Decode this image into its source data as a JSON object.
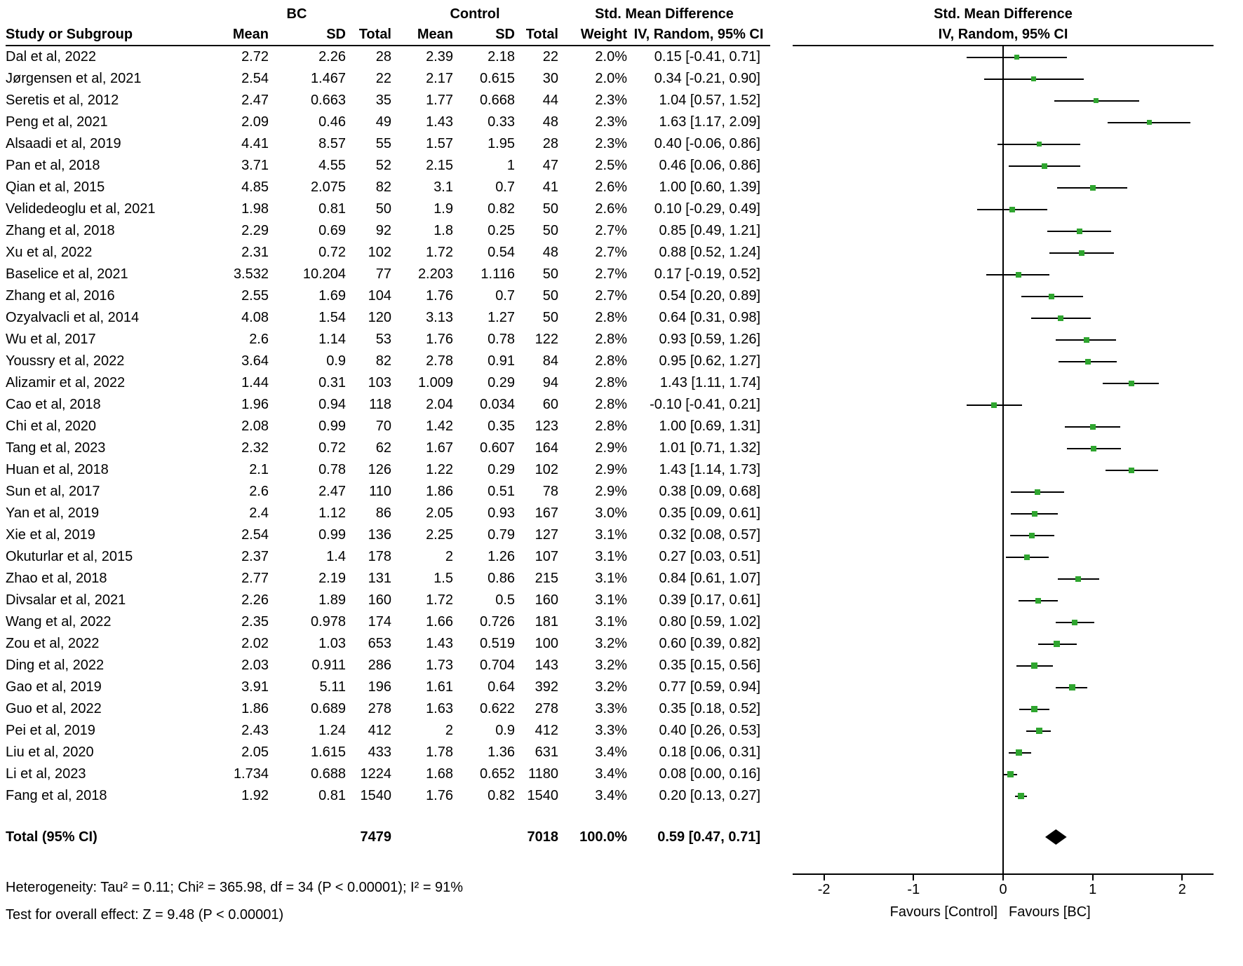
{
  "chart_data": {
    "type": "forest",
    "style": {
      "marker_color": "#2fa52f",
      "line_color": "#000000",
      "diamond_color": "#000000"
    },
    "group_headers": {
      "bc": "BC",
      "control": "Control",
      "smd": "Std. Mean Difference"
    },
    "col_headers": [
      "Study or Subgroup",
      "Mean",
      "SD",
      "Total",
      "Mean",
      "SD",
      "Total",
      "Weight",
      "IV, Random, 95% CI"
    ],
    "plot_header": {
      "title": "Std. Mean Difference",
      "subtitle": "IV, Random, 95% CI"
    },
    "axis": {
      "xmin": -2.35,
      "xmax": 2.35,
      "ticks": [
        -2,
        -1,
        0,
        1,
        2
      ],
      "favours_left": "Favours [Control]",
      "favours_right": "Favours [BC]"
    },
    "studies": [
      {
        "study": "Dal et al, 2022",
        "bc_mean": "2.72",
        "bc_sd": "2.26",
        "bc_total": "28",
        "c_mean": "2.39",
        "c_sd": "2.18",
        "c_total": "22",
        "weight": "2.0%",
        "ci": "0.15 [-0.41, 0.71]",
        "est": 0.15,
        "lo": -0.41,
        "hi": 0.71
      },
      {
        "study": "Jørgensen et al, 2021",
        "bc_mean": "2.54",
        "bc_sd": "1.467",
        "bc_total": "22",
        "c_mean": "2.17",
        "c_sd": "0.615",
        "c_total": "30",
        "weight": "2.0%",
        "ci": "0.34 [-0.21, 0.90]",
        "est": 0.34,
        "lo": -0.21,
        "hi": 0.9
      },
      {
        "study": "Seretis et al, 2012",
        "bc_mean": "2.47",
        "bc_sd": "0.663",
        "bc_total": "35",
        "c_mean": "1.77",
        "c_sd": "0.668",
        "c_total": "44",
        "weight": "2.3%",
        "ci": "1.04 [0.57, 1.52]",
        "est": 1.04,
        "lo": 0.57,
        "hi": 1.52
      },
      {
        "study": "Peng et al, 2021",
        "bc_mean": "2.09",
        "bc_sd": "0.46",
        "bc_total": "49",
        "c_mean": "1.43",
        "c_sd": "0.33",
        "c_total": "48",
        "weight": "2.3%",
        "ci": "1.63 [1.17, 2.09]",
        "est": 1.63,
        "lo": 1.17,
        "hi": 2.09
      },
      {
        "study": "Alsaadi et al, 2019",
        "bc_mean": "4.41",
        "bc_sd": "8.57",
        "bc_total": "55",
        "c_mean": "1.57",
        "c_sd": "1.95",
        "c_total": "28",
        "weight": "2.3%",
        "ci": "0.40 [-0.06, 0.86]",
        "est": 0.4,
        "lo": -0.06,
        "hi": 0.86
      },
      {
        "study": "Pan et al, 2018",
        "bc_mean": "3.71",
        "bc_sd": "4.55",
        "bc_total": "52",
        "c_mean": "2.15",
        "c_sd": "1",
        "c_total": "47",
        "weight": "2.5%",
        "ci": "0.46 [0.06, 0.86]",
        "est": 0.46,
        "lo": 0.06,
        "hi": 0.86
      },
      {
        "study": "Qian et al, 2015",
        "bc_mean": "4.85",
        "bc_sd": "2.075",
        "bc_total": "82",
        "c_mean": "3.1",
        "c_sd": "0.7",
        "c_total": "41",
        "weight": "2.6%",
        "ci": "1.00 [0.60, 1.39]",
        "est": 1.0,
        "lo": 0.6,
        "hi": 1.39
      },
      {
        "study": "Velidedeoglu et al, 2021",
        "bc_mean": "1.98",
        "bc_sd": "0.81",
        "bc_total": "50",
        "c_mean": "1.9",
        "c_sd": "0.82",
        "c_total": "50",
        "weight": "2.6%",
        "ci": "0.10 [-0.29, 0.49]",
        "est": 0.1,
        "lo": -0.29,
        "hi": 0.49
      },
      {
        "study": "Zhang et al, 2018",
        "bc_mean": "2.29",
        "bc_sd": "0.69",
        "bc_total": "92",
        "c_mean": "1.8",
        "c_sd": "0.25",
        "c_total": "50",
        "weight": "2.7%",
        "ci": "0.85 [0.49, 1.21]",
        "est": 0.85,
        "lo": 0.49,
        "hi": 1.21
      },
      {
        "study": "Xu et al, 2022",
        "bc_mean": "2.31",
        "bc_sd": "0.72",
        "bc_total": "102",
        "c_mean": "1.72",
        "c_sd": "0.54",
        "c_total": "48",
        "weight": "2.7%",
        "ci": "0.88 [0.52, 1.24]",
        "est": 0.88,
        "lo": 0.52,
        "hi": 1.24
      },
      {
        "study": "Baselice et al, 2021",
        "bc_mean": "3.532",
        "bc_sd": "10.204",
        "bc_total": "77",
        "c_mean": "2.203",
        "c_sd": "1.116",
        "c_total": "50",
        "weight": "2.7%",
        "ci": "0.17 [-0.19, 0.52]",
        "est": 0.17,
        "lo": -0.19,
        "hi": 0.52
      },
      {
        "study": "Zhang et al, 2016",
        "bc_mean": "2.55",
        "bc_sd": "1.69",
        "bc_total": "104",
        "c_mean": "1.76",
        "c_sd": "0.7",
        "c_total": "50",
        "weight": "2.7%",
        "ci": "0.54 [0.20, 0.89]",
        "est": 0.54,
        "lo": 0.2,
        "hi": 0.89
      },
      {
        "study": "Ozyalvacli et al, 2014",
        "bc_mean": "4.08",
        "bc_sd": "1.54",
        "bc_total": "120",
        "c_mean": "3.13",
        "c_sd": "1.27",
        "c_total": "50",
        "weight": "2.8%",
        "ci": "0.64 [0.31, 0.98]",
        "est": 0.64,
        "lo": 0.31,
        "hi": 0.98
      },
      {
        "study": "Wu et al, 2017",
        "bc_mean": "2.6",
        "bc_sd": "1.14",
        "bc_total": "53",
        "c_mean": "1.76",
        "c_sd": "0.78",
        "c_total": "122",
        "weight": "2.8%",
        "ci": "0.93 [0.59, 1.26]",
        "est": 0.93,
        "lo": 0.59,
        "hi": 1.26
      },
      {
        "study": "Youssry et al, 2022",
        "bc_mean": "3.64",
        "bc_sd": "0.9",
        "bc_total": "82",
        "c_mean": "2.78",
        "c_sd": "0.91",
        "c_total": "84",
        "weight": "2.8%",
        "ci": "0.95 [0.62, 1.27]",
        "est": 0.95,
        "lo": 0.62,
        "hi": 1.27
      },
      {
        "study": "Alizamir et al, 2022",
        "bc_mean": "1.44",
        "bc_sd": "0.31",
        "bc_total": "103",
        "c_mean": "1.009",
        "c_sd": "0.29",
        "c_total": "94",
        "weight": "2.8%",
        "ci": "1.43 [1.11, 1.74]",
        "est": 1.43,
        "lo": 1.11,
        "hi": 1.74
      },
      {
        "study": "Cao et al, 2018",
        "bc_mean": "1.96",
        "bc_sd": "0.94",
        "bc_total": "118",
        "c_mean": "2.04",
        "c_sd": "0.034",
        "c_total": "60",
        "weight": "2.8%",
        "ci": "-0.10 [-0.41, 0.21]",
        "est": -0.1,
        "lo": -0.41,
        "hi": 0.21
      },
      {
        "study": "Chi et al, 2020",
        "bc_mean": "2.08",
        "bc_sd": "0.99",
        "bc_total": "70",
        "c_mean": "1.42",
        "c_sd": "0.35",
        "c_total": "123",
        "weight": "2.8%",
        "ci": "1.00 [0.69, 1.31]",
        "est": 1.0,
        "lo": 0.69,
        "hi": 1.31
      },
      {
        "study": "Tang et al, 2023",
        "bc_mean": "2.32",
        "bc_sd": "0.72",
        "bc_total": "62",
        "c_mean": "1.67",
        "c_sd": "0.607",
        "c_total": "164",
        "weight": "2.9%",
        "ci": "1.01 [0.71, 1.32]",
        "est": 1.01,
        "lo": 0.71,
        "hi": 1.32
      },
      {
        "study": "Huan et al, 2018",
        "bc_mean": "2.1",
        "bc_sd": "0.78",
        "bc_total": "126",
        "c_mean": "1.22",
        "c_sd": "0.29",
        "c_total": "102",
        "weight": "2.9%",
        "ci": "1.43 [1.14, 1.73]",
        "est": 1.43,
        "lo": 1.14,
        "hi": 1.73
      },
      {
        "study": "Sun et al, 2017",
        "bc_mean": "2.6",
        "bc_sd": "2.47",
        "bc_total": "110",
        "c_mean": "1.86",
        "c_sd": "0.51",
        "c_total": "78",
        "weight": "2.9%",
        "ci": "0.38 [0.09, 0.68]",
        "est": 0.38,
        "lo": 0.09,
        "hi": 0.68
      },
      {
        "study": "Yan et al, 2019",
        "bc_mean": "2.4",
        "bc_sd": "1.12",
        "bc_total": "86",
        "c_mean": "2.05",
        "c_sd": "0.93",
        "c_total": "167",
        "weight": "3.0%",
        "ci": "0.35 [0.09, 0.61]",
        "est": 0.35,
        "lo": 0.09,
        "hi": 0.61
      },
      {
        "study": "Xie et al, 2019",
        "bc_mean": "2.54",
        "bc_sd": "0.99",
        "bc_total": "136",
        "c_mean": "2.25",
        "c_sd": "0.79",
        "c_total": "127",
        "weight": "3.1%",
        "ci": "0.32 [0.08, 0.57]",
        "est": 0.32,
        "lo": 0.08,
        "hi": 0.57
      },
      {
        "study": "Okuturlar et al, 2015",
        "bc_mean": "2.37",
        "bc_sd": "1.4",
        "bc_total": "178",
        "c_mean": "2",
        "c_sd": "1.26",
        "c_total": "107",
        "weight": "3.1%",
        "ci": "0.27 [0.03, 0.51]",
        "est": 0.27,
        "lo": 0.03,
        "hi": 0.51
      },
      {
        "study": "Zhao et al, 2018",
        "bc_mean": "2.77",
        "bc_sd": "2.19",
        "bc_total": "131",
        "c_mean": "1.5",
        "c_sd": "0.86",
        "c_total": "215",
        "weight": "3.1%",
        "ci": "0.84 [0.61, 1.07]",
        "est": 0.84,
        "lo": 0.61,
        "hi": 1.07
      },
      {
        "study": "Divsalar et al, 2021",
        "bc_mean": "2.26",
        "bc_sd": "1.89",
        "bc_total": "160",
        "c_mean": "1.72",
        "c_sd": "0.5",
        "c_total": "160",
        "weight": "3.1%",
        "ci": "0.39 [0.17, 0.61]",
        "est": 0.39,
        "lo": 0.17,
        "hi": 0.61
      },
      {
        "study": "Wang et al, 2022",
        "bc_mean": "2.35",
        "bc_sd": "0.978",
        "bc_total": "174",
        "c_mean": "1.66",
        "c_sd": "0.726",
        "c_total": "181",
        "weight": "3.1%",
        "ci": "0.80 [0.59, 1.02]",
        "est": 0.8,
        "lo": 0.59,
        "hi": 1.02
      },
      {
        "study": "Zou et al, 2022",
        "bc_mean": "2.02",
        "bc_sd": "1.03",
        "bc_total": "653",
        "c_mean": "1.43",
        "c_sd": "0.519",
        "c_total": "100",
        "weight": "3.2%",
        "ci": "0.60 [0.39, 0.82]",
        "est": 0.6,
        "lo": 0.39,
        "hi": 0.82
      },
      {
        "study": "Ding et al, 2022",
        "bc_mean": "2.03",
        "bc_sd": "0.911",
        "bc_total": "286",
        "c_mean": "1.73",
        "c_sd": "0.704",
        "c_total": "143",
        "weight": "3.2%",
        "ci": "0.35 [0.15, 0.56]",
        "est": 0.35,
        "lo": 0.15,
        "hi": 0.56
      },
      {
        "study": "Gao et al, 2019",
        "bc_mean": "3.91",
        "bc_sd": "5.11",
        "bc_total": "196",
        "c_mean": "1.61",
        "c_sd": "0.64",
        "c_total": "392",
        "weight": "3.2%",
        "ci": "0.77 [0.59, 0.94]",
        "est": 0.77,
        "lo": 0.59,
        "hi": 0.94
      },
      {
        "study": "Guo et al, 2022",
        "bc_mean": "1.86",
        "bc_sd": "0.689",
        "bc_total": "278",
        "c_mean": "1.63",
        "c_sd": "0.622",
        "c_total": "278",
        "weight": "3.3%",
        "ci": "0.35 [0.18, 0.52]",
        "est": 0.35,
        "lo": 0.18,
        "hi": 0.52
      },
      {
        "study": "Pei et al, 2019",
        "bc_mean": "2.43",
        "bc_sd": "1.24",
        "bc_total": "412",
        "c_mean": "2",
        "c_sd": "0.9",
        "c_total": "412",
        "weight": "3.3%",
        "ci": "0.40 [0.26, 0.53]",
        "est": 0.4,
        "lo": 0.26,
        "hi": 0.53
      },
      {
        "study": "Liu et al, 2020",
        "bc_mean": "2.05",
        "bc_sd": "1.615",
        "bc_total": "433",
        "c_mean": "1.78",
        "c_sd": "1.36",
        "c_total": "631",
        "weight": "3.4%",
        "ci": "0.18 [0.06, 0.31]",
        "est": 0.18,
        "lo": 0.06,
        "hi": 0.31
      },
      {
        "study": "Li et al, 2023",
        "bc_mean": "1.734",
        "bc_sd": "0.688",
        "bc_total": "1224",
        "c_mean": "1.68",
        "c_sd": "0.652",
        "c_total": "1180",
        "weight": "3.4%",
        "ci": "0.08 [0.00, 0.16]",
        "est": 0.08,
        "lo": 0.0,
        "hi": 0.16
      },
      {
        "study": "Fang et al, 2018",
        "bc_mean": "1.92",
        "bc_sd": "0.81",
        "bc_total": "1540",
        "c_mean": "1.76",
        "c_sd": "0.82",
        "c_total": "1540",
        "weight": "3.4%",
        "ci": "0.20 [0.13, 0.27]",
        "est": 0.2,
        "lo": 0.13,
        "hi": 0.27
      }
    ],
    "total": {
      "label": "Total (95% CI)",
      "bc_total": "7479",
      "c_total": "7018",
      "weight": "100.0%",
      "ci": "0.59 [0.47, 0.71]",
      "est": 0.59,
      "lo": 0.47,
      "hi": 0.71
    },
    "heterogeneity": "Heterogeneity: Tau² = 0.11; Chi² = 365.98, df = 34 (P < 0.00001); I² = 91%",
    "overall_effect": "Test for overall effect: Z = 9.48 (P < 0.00001)"
  }
}
